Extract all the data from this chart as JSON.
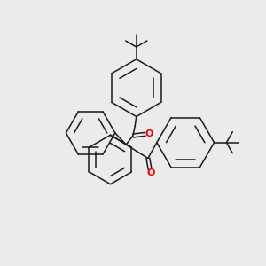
{
  "bg_color": "#ebebeb",
  "line_color": "#1a1a1a",
  "oxygen_color": "#ee0000",
  "line_width": 1.1,
  "figsize": [
    3.0,
    3.0
  ],
  "dpi": 100
}
